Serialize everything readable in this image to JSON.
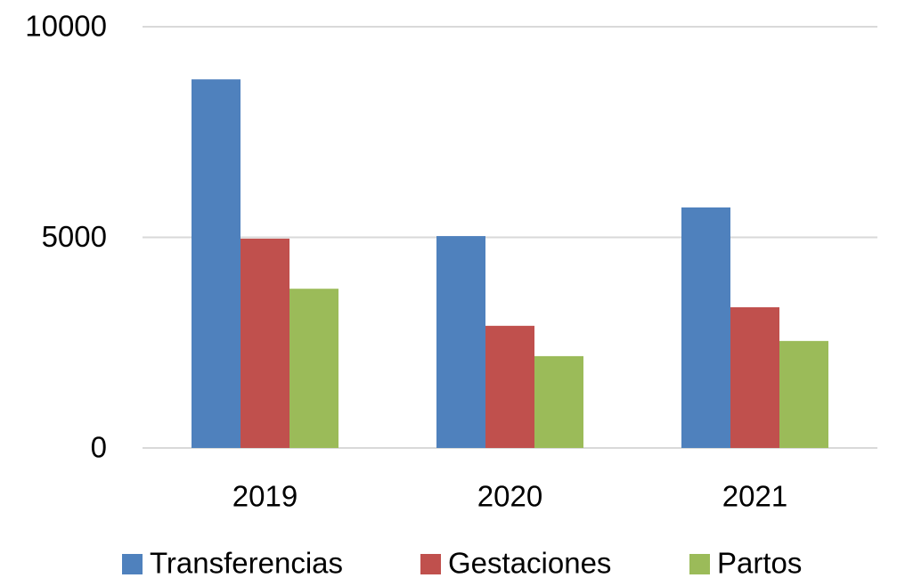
{
  "chart_data": {
    "type": "bar",
    "categories": [
      "2019",
      "2020",
      "2021"
    ],
    "series": [
      {
        "name": "Transferencias",
        "color": "#4f81bd",
        "values": [
          8750,
          5030,
          5710
        ]
      },
      {
        "name": "Gestaciones",
        "color": "#c0504d",
        "values": [
          4970,
          2900,
          3340
        ]
      },
      {
        "name": "Partos",
        "color": "#9bbb59",
        "values": [
          3780,
          2180,
          2540
        ]
      }
    ],
    "ylim": [
      0,
      10000
    ],
    "yticks": [
      0,
      5000,
      10000
    ],
    "grid": true,
    "legend": "bottom"
  }
}
